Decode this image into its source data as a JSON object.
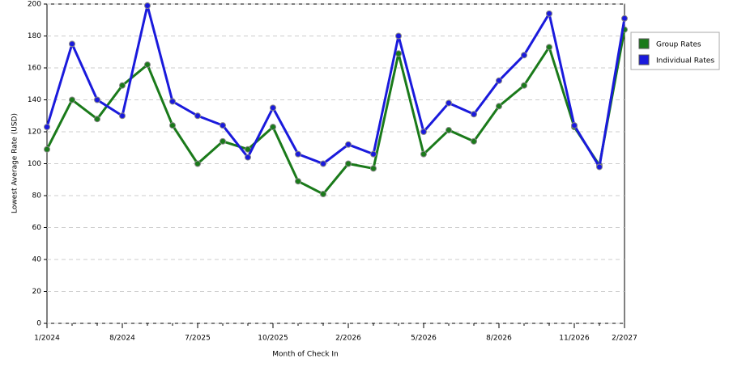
{
  "chart_data": {
    "type": "line",
    "x_label": "Month of Check In",
    "y_label": "Lowest Average Rate (USD)",
    "categories": [
      "1/2024",
      null,
      null,
      "8/2024",
      null,
      null,
      "7/2025",
      null,
      null,
      "10/2025",
      null,
      null,
      "2/2026",
      null,
      null,
      "5/2026",
      null,
      null,
      "8/2026",
      null,
      null,
      "11/2026",
      null,
      "2/2027"
    ],
    "series": [
      {
        "name": "Group Rates",
        "color": "#1a7a1a",
        "values": [
          109,
          140,
          128,
          149,
          162,
          124,
          100,
          114,
          109,
          123,
          89,
          81,
          100,
          97,
          169,
          106,
          121,
          114,
          136,
          149,
          173,
          123,
          99,
          184
        ]
      },
      {
        "name": "Individual Rates",
        "color": "#1a1adc",
        "values": [
          123,
          175,
          140,
          130,
          199,
          139,
          130,
          124,
          104,
          135,
          106,
          100,
          112,
          106,
          180,
          120,
          138,
          131,
          152,
          168,
          194,
          124,
          98,
          191
        ]
      }
    ],
    "ylim": [
      0,
      200
    ],
    "yticks": [
      0,
      20,
      40,
      60,
      80,
      100,
      120,
      140,
      160,
      180,
      200
    ],
    "grid": true,
    "legend": "right"
  }
}
